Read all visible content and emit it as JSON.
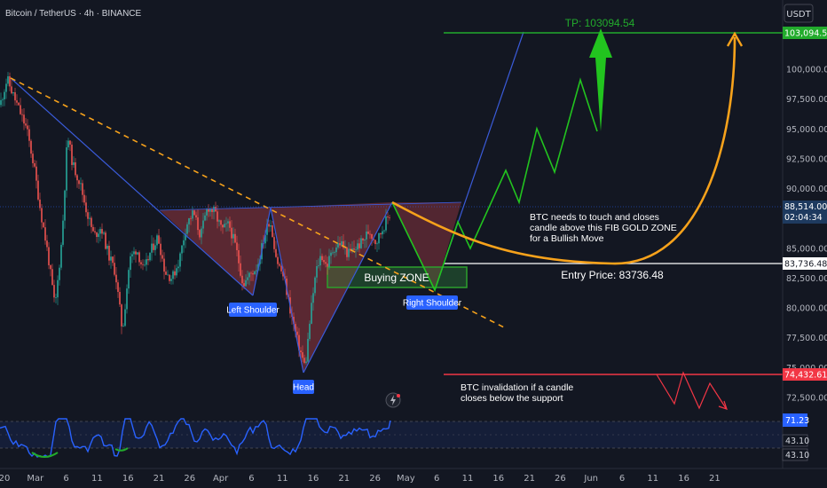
{
  "header": {
    "title": "Bitcoin / TetherUS · 4h · BINANCE"
  },
  "currency_button": "USDT",
  "chart_data": {
    "type": "candlestick",
    "symbol": "Bitcoin / TetherUS",
    "timeframe": "4h",
    "exchange": "BINANCE",
    "y_ticks": [
      100000,
      97500,
      95000,
      92500,
      90000,
      85000,
      82500,
      80000,
      77500,
      75000,
      72500
    ],
    "y_tick_labels": [
      "100,000.00",
      "97,500.00",
      "95,000.00",
      "92,500.00",
      "90,000.00",
      "85,000.00",
      "82,500.00",
      "80,000.00",
      "77,500.00",
      "75,000.00",
      "72,500.00"
    ],
    "x_tick_labels": [
      "20",
      "Mar",
      "6",
      "11",
      "16",
      "21",
      "26",
      "Apr",
      "6",
      "11",
      "16",
      "21",
      "26",
      "May",
      "6",
      "11",
      "16",
      "21",
      "26",
      "Jun",
      "6",
      "11",
      "16",
      "21"
    ],
    "price_path": [
      [
        0,
        97000
      ],
      [
        8,
        99200
      ],
      [
        14,
        98000
      ],
      [
        22,
        96500
      ],
      [
        30,
        95000
      ],
      [
        38,
        92000
      ],
      [
        46,
        88000
      ],
      [
        54,
        84500
      ],
      [
        62,
        80000
      ],
      [
        70,
        86000
      ],
      [
        76,
        94500
      ],
      [
        82,
        92000
      ],
      [
        90,
        90500
      ],
      [
        98,
        88000
      ],
      [
        106,
        86000
      ],
      [
        114,
        86800
      ],
      [
        122,
        84500
      ],
      [
        130,
        83000
      ],
      [
        138,
        78000
      ],
      [
        146,
        84000
      ],
      [
        154,
        85000
      ],
      [
        162,
        83000
      ],
      [
        170,
        84800
      ],
      [
        178,
        86000
      ],
      [
        186,
        83000
      ],
      [
        194,
        82500
      ],
      [
        202,
        84000
      ],
      [
        210,
        87000
      ],
      [
        218,
        88000
      ],
      [
        226,
        86000
      ],
      [
        234,
        88500
      ],
      [
        242,
        88000
      ],
      [
        250,
        86500
      ],
      [
        258,
        87000
      ],
      [
        266,
        85000
      ],
      [
        274,
        82000
      ],
      [
        282,
        82800
      ],
      [
        290,
        83500
      ],
      [
        298,
        86000
      ],
      [
        304,
        87500
      ],
      [
        312,
        84000
      ],
      [
        320,
        82500
      ],
      [
        328,
        79500
      ],
      [
        336,
        77000
      ],
      [
        344,
        75000
      ],
      [
        350,
        79500
      ],
      [
        356,
        83000
      ],
      [
        362,
        84500
      ],
      [
        368,
        83500
      ],
      [
        376,
        85000
      ],
      [
        384,
        85500
      ],
      [
        392,
        84500
      ],
      [
        400,
        85000
      ],
      [
        408,
        85500
      ],
      [
        416,
        86500
      ],
      [
        424,
        85500
      ],
      [
        432,
        86800
      ],
      [
        440,
        88000
      ]
    ],
    "price_labels": {
      "target": "103,094.54",
      "current": "88,514.00",
      "countdown": "02:04:34",
      "entry": "83,736.48",
      "invalidation": "74,432.61"
    },
    "rsi": {
      "values": [
        "71.23",
        "43.10",
        "43.10"
      ]
    },
    "annotations": {
      "tp": "TP: 103094.54",
      "buying_zone": "Buying ZONE",
      "fib_note": [
        "BTC needs to touch and closes",
        "candle above this FIB GOLD ZONE",
        "for a Bullish Move"
      ],
      "entry": "Entry Price: 83736.48",
      "invalidation": [
        "BTC invalidation if a candle",
        "closes below the support"
      ],
      "left_shoulder": "Left Shoulder",
      "head": "Head",
      "right_shoulder": "Right Shoulder"
    },
    "colors": {
      "up": "#26a69a",
      "down": "#ef5350",
      "target": "#22ab2c",
      "curve": "#f7a21b",
      "trend": "#3a5bd9",
      "invalid": "#f23645",
      "rsi": "#2962ff"
    }
  }
}
